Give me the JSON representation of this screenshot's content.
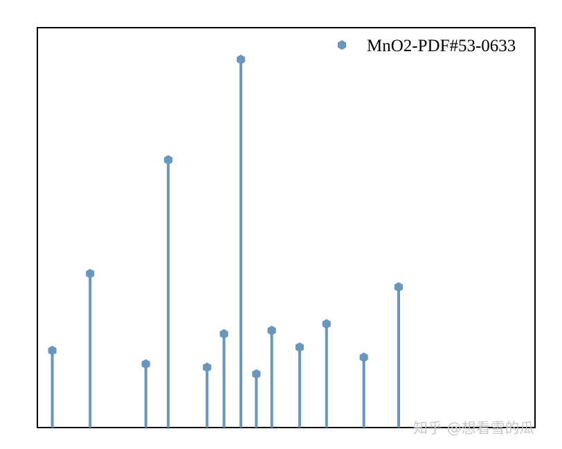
{
  "chart_data": {
    "type": "stem",
    "legend_placement": "top-right",
    "grid": false,
    "xlim": [
      0,
      100
    ],
    "ylim": [
      0,
      110
    ],
    "color": "#6a95bd",
    "marker": "hexagon",
    "series": [
      {
        "name": "MnO2-PDF#53-0633",
        "x": [
          3,
          10.6,
          21.8,
          26.3,
          34.1,
          37.5,
          40.9,
          44,
          47.1,
          52.7,
          58.1,
          65.6,
          72.6
        ],
        "y": [
          23,
          46,
          19,
          80,
          18,
          28,
          110,
          16,
          29,
          24,
          31,
          21,
          42
        ]
      }
    ]
  },
  "watermark": "知乎 @想看雪的瓜"
}
